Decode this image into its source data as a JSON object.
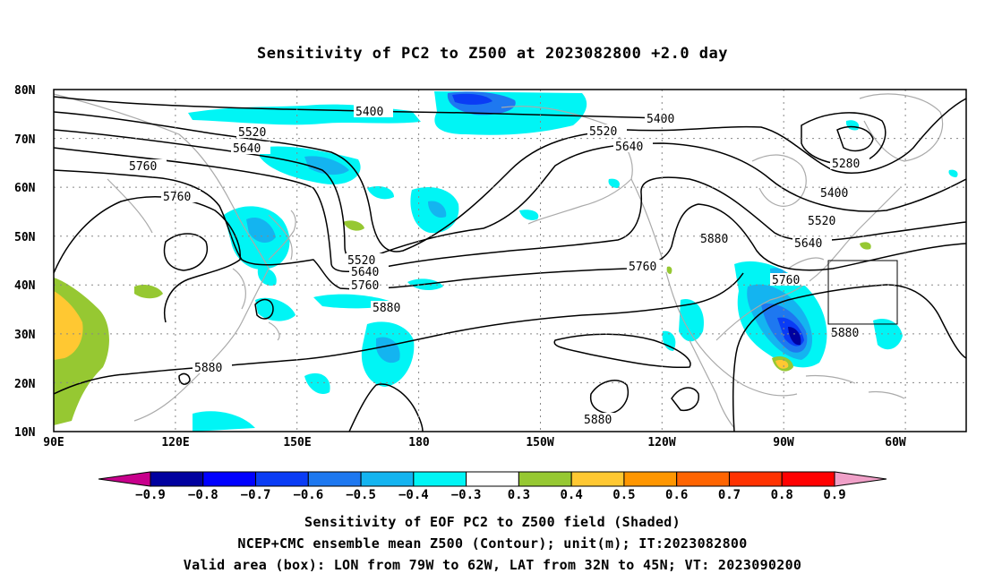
{
  "title": "Sensitivity of PC2 to Z500 at 2023082800 +2.0 day",
  "map": {
    "lat_labels": [
      "80N",
      "70N",
      "60N",
      "50N",
      "40N",
      "30N",
      "20N",
      "10N"
    ],
    "lon_labels": [
      "90E",
      "120E",
      "150E",
      "180",
      "150W",
      "120W",
      "90W",
      "60W"
    ],
    "lon_range": [
      90,
      315
    ],
    "lat_range": [
      10,
      80
    ],
    "grid": "dotted",
    "coastline_color": "#aaaaaa"
  },
  "contours": {
    "unit": "m",
    "labels": [
      "5400",
      "5400",
      "5520",
      "5520",
      "5640",
      "5640",
      "5760",
      "5760",
      "5280",
      "5400",
      "5520",
      "5640",
      "5880",
      "5520",
      "5640",
      "5760",
      "5760",
      "5760",
      "5880",
      "5880",
      "5880",
      "5880"
    ]
  },
  "valid_box": {
    "lon": [
      281,
      298
    ],
    "lat": [
      32,
      45
    ]
  },
  "colorbar": {
    "labels": [
      "-0.9",
      "-0.8",
      "-0.7",
      "-0.6",
      "-0.5",
      "-0.4",
      "-0.3",
      "0.3",
      "0.4",
      "0.5",
      "0.6",
      "0.7",
      "0.8",
      "0.9"
    ],
    "colors": [
      "#00009f",
      "#0000ff",
      "#0a3cf5",
      "#1e78f0",
      "#14b4f0",
      "#00f5f5",
      "#ffffff",
      "#96c832",
      "#ffc832",
      "#ff9600",
      "#ff6400",
      "#ff3200",
      "#ff0000"
    ],
    "left_arrow": "#c8008c",
    "right_arrow": "#f0a0c8"
  },
  "captions": {
    "line1": "Sensitivity of EOF PC2 to Z500 field (Shaded)",
    "line2": "NCEP+CMC ensemble mean Z500 (Contour); unit(m); IT:2023082800",
    "line3": "Valid area (box): LON from 79W to 62W, LAT from 32N to 45N; VT: 2023090200"
  }
}
